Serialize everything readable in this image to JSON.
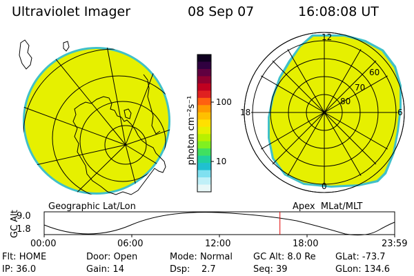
{
  "header": {
    "instrument": "Ultraviolet Imager",
    "date": "08 Sep 07",
    "time": "16:08:08 UT"
  },
  "colors": {
    "fill": "#e6f000",
    "rim": "#40c0c8",
    "marker": "#e00000"
  },
  "colorbar": {
    "label": "photon cm⁻²s⁻¹",
    "tick_high": "100",
    "tick_low": "10",
    "colors_top_to_bottom": [
      "#100020",
      "#300040",
      "#600040",
      "#900030",
      "#c00020",
      "#e02020",
      "#ff6010",
      "#ff9a00",
      "#ffc000",
      "#ffe000",
      "#e6f000",
      "#b8f000",
      "#80f020",
      "#40e060",
      "#20d0a0",
      "#20c0d0",
      "#80e0f0",
      "#c0f0f8",
      "#e8f8f8"
    ]
  },
  "geo_panel": {
    "label": "Geographic Lat/Lon"
  },
  "polar_panel": {
    "label": "Apex  MLat/MLT",
    "mlt_top": "12",
    "mlt_left": "18",
    "mlt_right": "6",
    "mlt_bottom": "0",
    "lat_labels": [
      "60",
      "70",
      "80"
    ]
  },
  "altitude_plot": {
    "ylabel": "GC Alt",
    "ytick_top": "9.0",
    "ytick_bottom": "1.8",
    "xticks": [
      "00:00",
      "06:00",
      "12:00",
      "18:00",
      "23:59"
    ],
    "marker_time": "16:08"
  },
  "status": {
    "row1": [
      {
        "label": "Flt:",
        "value": "HOME"
      },
      {
        "label": "Door:",
        "value": "Open"
      },
      {
        "label": "Mode:",
        "value": "Normal"
      },
      {
        "label": "GC Alt:",
        "value": "8.0 Re"
      },
      {
        "label": "GLat:",
        "value": "-73.7"
      }
    ],
    "row2": [
      {
        "label": "IP:",
        "value": "36.0"
      },
      {
        "label": "Gain:",
        "value": "14"
      },
      {
        "label": "Dsp:",
        "value": "2.7"
      },
      {
        "label": "Seq:",
        "value": "39"
      },
      {
        "label": "GLon:",
        "value": "134.6"
      }
    ]
  }
}
